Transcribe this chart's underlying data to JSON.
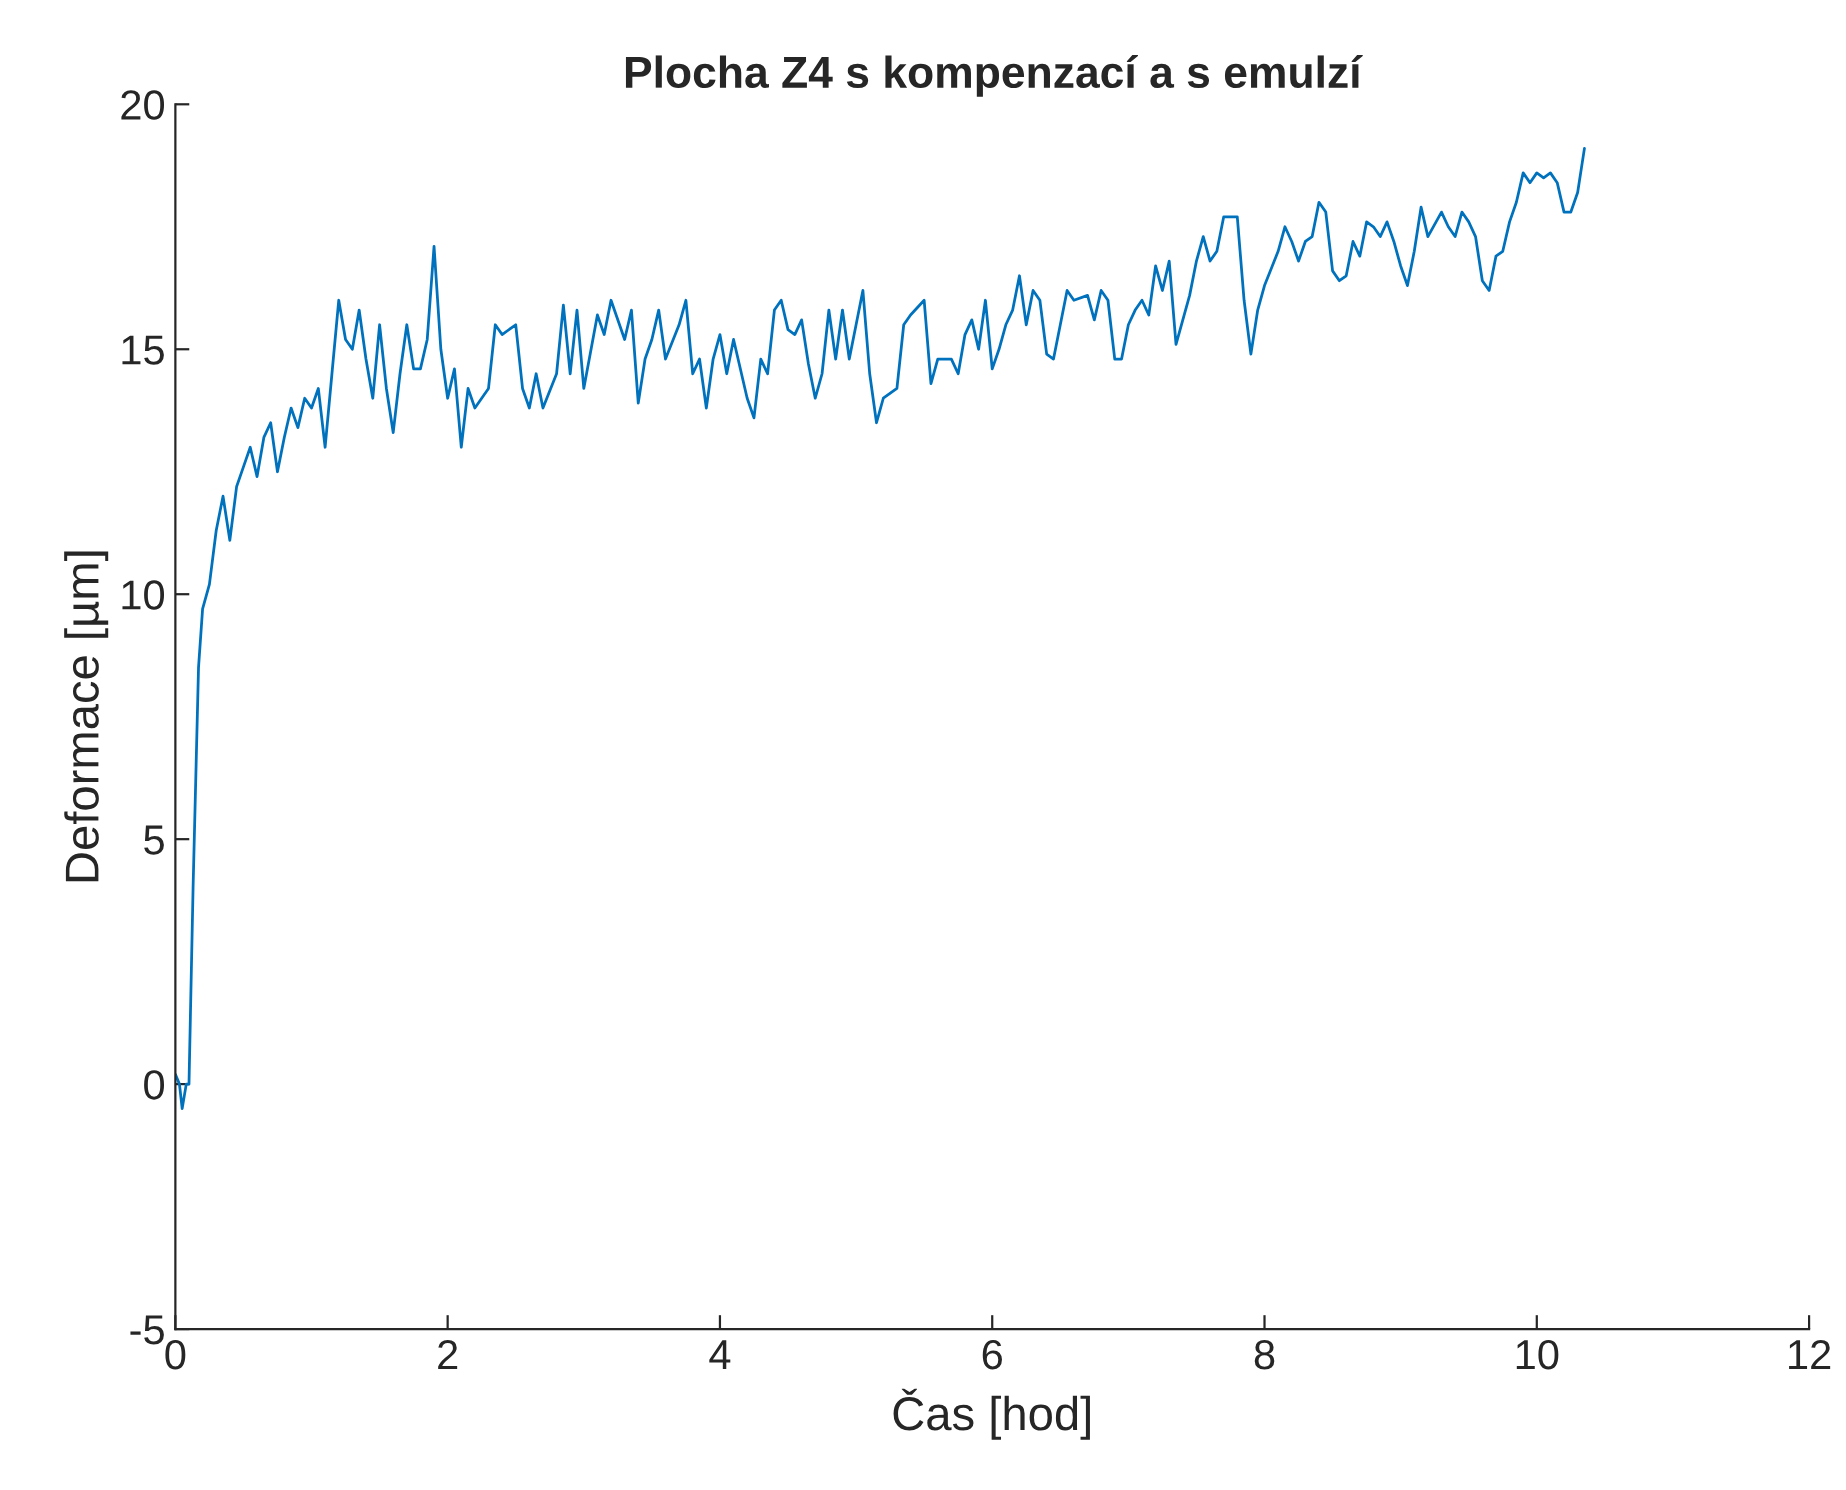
{
  "chart_data": {
    "type": "line",
    "title": "Plocha Z4 s kompenzací a s emulzí",
    "xlabel": "Čas [hod]",
    "ylabel": "Deformace [µm]",
    "xlim": [
      0,
      12
    ],
    "xticks": [
      0,
      2,
      4,
      6,
      8,
      10,
      12
    ],
    "ylim": [
      -5,
      20
    ],
    "yticks": [
      -5,
      0,
      5,
      10,
      15,
      20
    ],
    "series": [
      {
        "color": "#0072bd",
        "x": [
          0,
          0.03,
          0.05,
          0.08,
          0.1,
          0.13,
          0.17,
          0.2,
          0.25,
          0.3,
          0.35,
          0.4,
          0.45,
          0.5,
          0.55,
          0.6,
          0.65,
          0.7,
          0.75,
          0.8,
          0.85,
          0.9,
          0.95,
          1.0,
          1.05,
          1.1,
          1.15,
          1.2,
          1.25,
          1.3,
          1.35,
          1.4,
          1.45,
          1.5,
          1.55,
          1.6,
          1.65,
          1.7,
          1.75,
          1.8,
          1.85,
          1.9,
          1.95,
          2.0,
          2.05,
          2.1,
          2.15,
          2.2,
          2.3,
          2.35,
          2.4,
          2.5,
          2.55,
          2.6,
          2.65,
          2.7,
          2.8,
          2.85,
          2.9,
          2.95,
          3.0,
          3.1,
          3.15,
          3.2,
          3.3,
          3.35,
          3.4,
          3.45,
          3.5,
          3.55,
          3.6,
          3.7,
          3.75,
          3.8,
          3.85,
          3.9,
          3.95,
          4.0,
          4.05,
          4.1,
          4.2,
          4.25,
          4.3,
          4.35,
          4.4,
          4.45,
          4.5,
          4.55,
          4.6,
          4.65,
          4.7,
          4.75,
          4.8,
          4.85,
          4.9,
          4.95,
          5.0,
          5.05,
          5.1,
          5.15,
          5.2,
          5.3,
          5.35,
          5.4,
          5.5,
          5.55,
          5.6,
          5.7,
          5.75,
          5.8,
          5.85,
          5.9,
          5.95,
          6.0,
          6.05,
          6.1,
          6.15,
          6.2,
          6.25,
          6.3,
          6.35,
          6.4,
          6.45,
          6.5,
          6.55,
          6.6,
          6.7,
          6.75,
          6.8,
          6.85,
          6.9,
          6.95,
          7.0,
          7.05,
          7.1,
          7.15,
          7.2,
          7.25,
          7.3,
          7.35,
          7.4,
          7.45,
          7.5,
          7.55,
          7.6,
          7.65,
          7.7,
          7.75,
          7.8,
          7.85,
          7.9,
          7.95,
          8.0,
          8.1,
          8.15,
          8.2,
          8.25,
          8.3,
          8.35,
          8.4,
          8.45,
          8.5,
          8.55,
          8.6,
          8.65,
          8.7,
          8.75,
          8.8,
          8.85,
          8.9,
          8.95,
          9.0,
          9.05,
          9.1,
          9.15,
          9.2,
          9.3,
          9.35,
          9.4,
          9.45,
          9.5,
          9.55,
          9.6,
          9.65,
          9.7,
          9.75,
          9.8,
          9.85,
          9.9,
          9.95,
          10.0,
          10.05,
          10.1,
          10.15,
          10.2,
          10.25,
          10.3,
          10.35
        ],
        "values": [
          0.2,
          0,
          -0.5,
          0,
          0,
          4,
          8.5,
          9.7,
          10.2,
          11.3,
          12,
          11.1,
          12.2,
          12.6,
          13,
          12.4,
          13.2,
          13.5,
          12.5,
          13.2,
          13.8,
          13.4,
          14,
          13.8,
          14.2,
          13,
          14.5,
          16,
          15.2,
          15,
          15.8,
          14.8,
          14,
          15.5,
          14.2,
          13.3,
          14.5,
          15.5,
          14.6,
          14.6,
          15.2,
          17.1,
          15,
          14,
          14.6,
          13,
          14.2,
          13.8,
          14.2,
          15.5,
          15.3,
          15.5,
          14.2,
          13.8,
          14.5,
          13.8,
          14.5,
          15.9,
          14.5,
          15.8,
          14.2,
          15.7,
          15.3,
          16,
          15.2,
          15.8,
          13.9,
          14.8,
          15.2,
          15.8,
          14.8,
          15.5,
          16,
          14.5,
          14.8,
          13.8,
          14.8,
          15.3,
          14.5,
          15.2,
          14,
          13.6,
          14.8,
          14.5,
          15.8,
          16,
          15.4,
          15.3,
          15.6,
          14.7,
          14,
          14.5,
          15.8,
          14.8,
          15.8,
          14.8,
          15.5,
          16.2,
          14.5,
          13.5,
          14,
          14.2,
          15.5,
          15.7,
          16,
          14.3,
          14.8,
          14.8,
          14.5,
          15.3,
          15.6,
          15,
          16,
          14.6,
          15,
          15.5,
          15.8,
          16.5,
          15.5,
          16.2,
          16,
          14.9,
          14.8,
          15.5,
          16.2,
          16,
          16.1,
          15.6,
          16.2,
          16,
          14.8,
          14.8,
          15.5,
          15.8,
          16,
          15.7,
          16.7,
          16.2,
          16.8,
          15.1,
          15.6,
          16.1,
          16.8,
          17.3,
          16.8,
          17,
          17.7,
          17.7,
          17.7,
          16,
          14.9,
          15.8,
          16.3,
          17,
          17.5,
          17.2,
          16.8,
          17.2,
          17.3,
          18,
          17.8,
          16.6,
          16.4,
          16.5,
          17.2,
          16.9,
          17.6,
          17.5,
          17.3,
          17.6,
          17.2,
          16.7,
          16.3,
          17,
          17.9,
          17.3,
          17.8,
          17.5,
          17.3,
          17.8,
          17.6,
          17.3,
          16.4,
          16.2,
          16.9,
          17,
          17.6,
          18,
          18.6,
          18.4,
          18.6,
          18.5,
          18.6,
          18.4,
          17.8,
          17.8,
          18.2,
          19.1
        ]
      }
    ]
  }
}
